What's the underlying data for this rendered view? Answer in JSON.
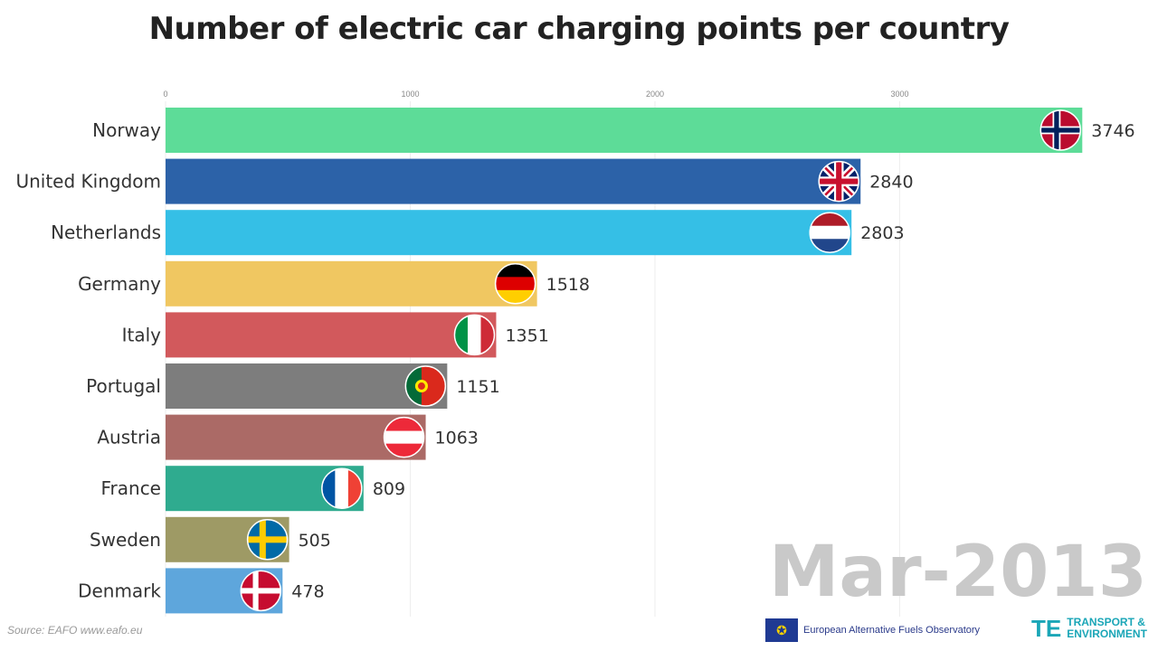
{
  "chart_data": {
    "type": "bar",
    "orientation": "horizontal",
    "title": "Number of electric car charging points per country",
    "categories": [
      "Norway",
      "United Kingdom",
      "Netherlands",
      "Germany",
      "Italy",
      "Portugal",
      "Austria",
      "France",
      "Sweden",
      "Denmark"
    ],
    "values": [
      3746,
      2840,
      2803,
      1518,
      1351,
      1151,
      1063,
      809,
      505,
      478
    ],
    "colors": [
      "#5ddc98",
      "#2c62a8",
      "#35bfe6",
      "#f0c761",
      "#d2595c",
      "#7d7d7d",
      "#ab6a66",
      "#2fab8f",
      "#9e9a65",
      "#5ea6dc"
    ],
    "flags": [
      "norway-flag",
      "uk-flag",
      "netherlands-flag",
      "germany-flag",
      "italy-flag",
      "portugal-flag",
      "austria-flag",
      "france-flag",
      "sweden-flag",
      "denmark-flag"
    ],
    "xticks": [
      0,
      1000,
      2000,
      3000
    ],
    "xlim": [
      0,
      3750
    ],
    "grid": true,
    "period": "Mar-2013"
  },
  "footer": {
    "source": "Source: EAFO  www.eafo.eu",
    "eafo": "European Alternative Fuels Observatory",
    "te_line1": "TRANSPORT &",
    "te_line2": "ENVIRONMENT"
  }
}
